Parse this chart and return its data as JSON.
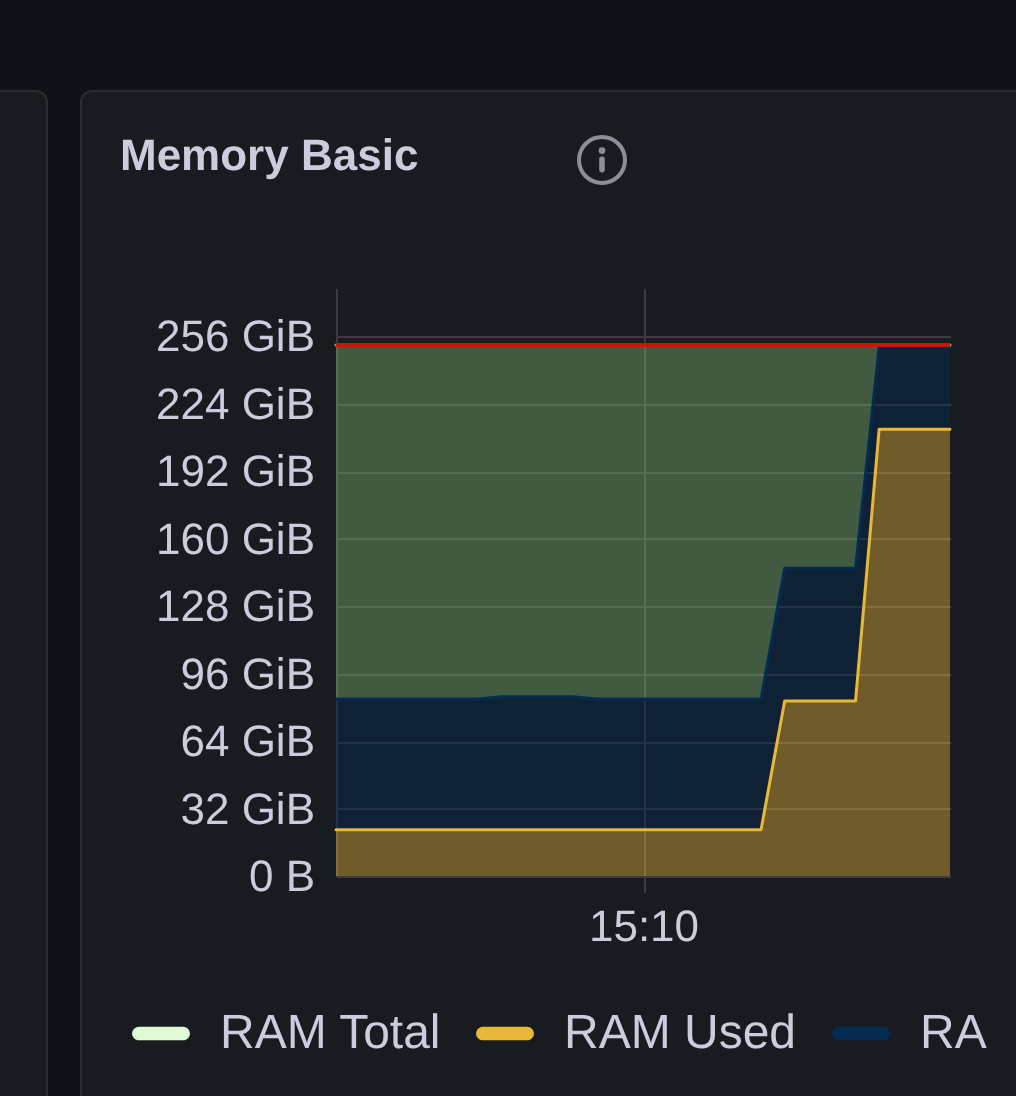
{
  "chart_data": {
    "type": "area",
    "title": "Memory Basic",
    "stacked": true,
    "categories": [
      null,
      null,
      null,
      null,
      null,
      null,
      null,
      null,
      null,
      null,
      null,
      null,
      null,
      "15:10",
      null,
      null,
      null,
      null,
      null,
      null,
      null,
      null,
      null,
      null,
      null,
      null,
      null
    ],
    "ylim": [
      0,
      279
    ],
    "yticks": [
      {
        "value": 0,
        "label": "0 B"
      },
      {
        "value": 32,
        "label": "32 GiB"
      },
      {
        "value": 64,
        "label": "64 GiB"
      },
      {
        "value": 96,
        "label": "96 GiB"
      },
      {
        "value": 128,
        "label": "128 GiB"
      },
      {
        "value": 160,
        "label": "160 GiB"
      },
      {
        "value": 192,
        "label": "192 GiB"
      },
      {
        "value": 224,
        "label": "224 GiB"
      },
      {
        "value": 256,
        "label": "256 GiB"
      }
    ],
    "grid": true,
    "legend": "bottom",
    "series": [
      {
        "name": "RAM Total",
        "color": "#e0f9d7",
        "values": [
          null,
          null,
          null,
          null,
          null,
          null,
          null,
          null,
          null,
          null,
          null,
          null,
          null,
          null,
          null,
          null,
          null,
          null,
          null,
          null,
          null,
          null,
          null,
          null,
          null,
          null,
          null
        ]
      },
      {
        "name": "RAM Used",
        "color": "#eab839",
        "values": [
          22,
          22,
          22,
          22,
          22,
          22,
          22,
          22,
          22,
          22,
          22,
          22,
          22,
          22,
          22,
          22,
          22,
          22,
          22,
          83,
          83,
          83,
          83,
          212,
          212,
          212,
          212
        ]
      },
      {
        "name": "RA",
        "color": "#052b51",
        "values": [
          62,
          62,
          62,
          62,
          62,
          62,
          62,
          63,
          63,
          63,
          63,
          62,
          62,
          62,
          62,
          62,
          62,
          62,
          62,
          63,
          63,
          63,
          63,
          39,
          39,
          39,
          39
        ]
      },
      {
        "color": "#7eb26d",
        "values": [
          168,
          168,
          168,
          168,
          168,
          168,
          168,
          167,
          167,
          167,
          167,
          168,
          168,
          168,
          168,
          168,
          168,
          168,
          168,
          106,
          106,
          106,
          106,
          1,
          1,
          1,
          1
        ]
      },
      {
        "color": "#bf1b00",
        "type": "line",
        "values": [
          252,
          252,
          252,
          252,
          252,
          252,
          252,
          252,
          252,
          252,
          252,
          252,
          252,
          252,
          252,
          252,
          252,
          252,
          252,
          252,
          252,
          252,
          252,
          252,
          252,
          252,
          252
        ]
      }
    ]
  }
}
